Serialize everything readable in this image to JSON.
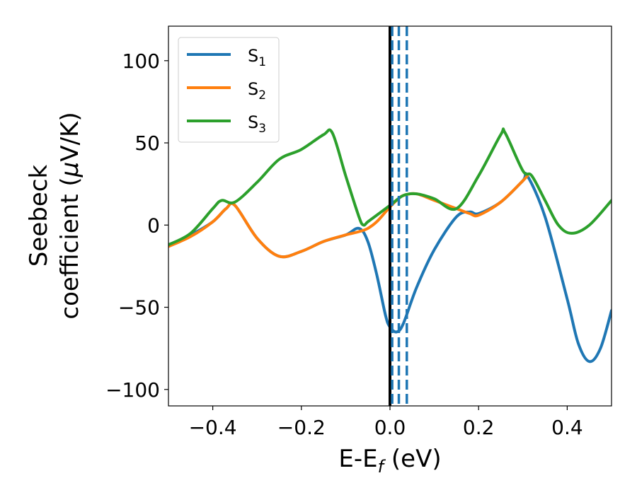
{
  "chart_data": {
    "type": "line",
    "xlabel": {
      "base": "E-E",
      "sub": "f",
      "suffix": " (eV)"
    },
    "ylabel": {
      "line1": "Seebeck",
      "line2": "coefficient  (",
      "mu": "μ",
      "unit": "V/K)"
    },
    "xlim": [
      -0.5,
      0.5
    ],
    "ylim": [
      -110,
      121
    ],
    "xticks": [
      -0.4,
      -0.2,
      0.0,
      0.2,
      0.4
    ],
    "xtick_labels": [
      "−0.4",
      "−0.2",
      "0.0",
      "0.2",
      "0.4"
    ],
    "yticks": [
      -100,
      -50,
      0,
      50,
      100
    ],
    "ytick_labels": [
      "−100",
      "−50",
      "0",
      "50",
      "100"
    ],
    "grid": false,
    "legend_position": "top-left",
    "vlines": [
      {
        "x": 0.0,
        "color": "#000000",
        "style": "solid"
      },
      {
        "x": 0.005,
        "color": "#1f77b4",
        "style": "dashed"
      },
      {
        "x": 0.02,
        "color": "#1f77b4",
        "style": "dashed"
      },
      {
        "x": 0.038,
        "color": "#1f77b4",
        "style": "dashed"
      }
    ],
    "series": [
      {
        "name": "S",
        "sub": "1",
        "color": "#1f77b4",
        "x": [
          -0.5,
          -0.45,
          -0.4,
          -0.37,
          -0.35,
          -0.3,
          -0.25,
          -0.2,
          -0.15,
          -0.1,
          -0.07,
          -0.05,
          -0.03,
          -0.01,
          0.0,
          0.015,
          0.03,
          0.06,
          0.1,
          0.15,
          0.18,
          0.2,
          0.25,
          0.3,
          0.31,
          0.35,
          0.4,
          0.425,
          0.45,
          0.475,
          0.5
        ],
        "y": [
          -12,
          -6,
          2,
          10,
          12,
          -8,
          -19,
          -16,
          -10,
          -6,
          -2,
          -10,
          -30,
          -55,
          -62,
          -65,
          -60,
          -38,
          -15,
          5,
          8,
          7,
          14,
          27,
          30,
          5,
          -45,
          -72,
          -83,
          -75,
          -52
        ]
      },
      {
        "name": "S",
        "sub": "2",
        "color": "#ff7f0e",
        "x": [
          -0.5,
          -0.45,
          -0.4,
          -0.37,
          -0.35,
          -0.3,
          -0.25,
          -0.2,
          -0.15,
          -0.1,
          -0.07,
          -0.05,
          -0.03,
          -0.01,
          0.0,
          0.015,
          0.03,
          0.06,
          0.1,
          0.15,
          0.18,
          0.2,
          0.25,
          0.3,
          0.31
        ],
        "y": [
          -13,
          -7,
          2,
          10,
          12,
          -8,
          -19,
          -16,
          -10,
          -6,
          -4,
          -2,
          2,
          8,
          11,
          15,
          18,
          19,
          15,
          10,
          7,
          6,
          14,
          27,
          30
        ]
      },
      {
        "name": "S",
        "sub": "3",
        "color": "#2ca02c",
        "x": [
          -0.5,
          -0.45,
          -0.4,
          -0.38,
          -0.35,
          -0.3,
          -0.25,
          -0.2,
          -0.15,
          -0.13,
          -0.1,
          -0.07,
          -0.06,
          -0.05,
          -0.03,
          0.0,
          0.03,
          0.06,
          0.1,
          0.15,
          0.2,
          0.25,
          0.26,
          0.3,
          0.32,
          0.35,
          0.38,
          0.41,
          0.45,
          0.5
        ],
        "y": [
          -12,
          -5,
          10,
          15,
          14,
          26,
          40,
          46,
          55,
          56,
          30,
          5,
          0,
          2,
          6,
          12,
          18,
          19,
          16,
          10,
          30,
          55,
          56,
          33,
          30,
          15,
          0,
          -5,
          0,
          15
        ]
      }
    ]
  }
}
